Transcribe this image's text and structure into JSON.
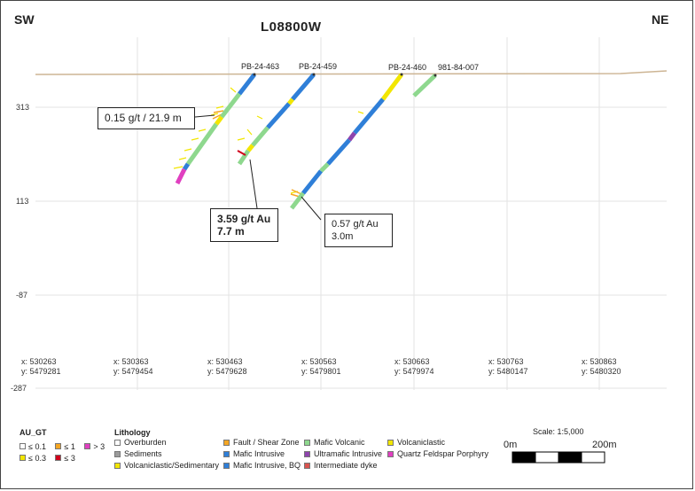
{
  "section": {
    "title": "L08800W",
    "left_direction": "SW",
    "right_direction": "NE"
  },
  "elevations": [
    "313",
    "113",
    "-87",
    "-287"
  ],
  "coordinates": [
    {
      "x": "x: 530263",
      "y": "y: 5479281"
    },
    {
      "x": "x: 530363",
      "y": "y: 5479454"
    },
    {
      "x": "x: 530463",
      "y": "y: 5479628"
    },
    {
      "x": "x: 530563",
      "y": "y: 5479801"
    },
    {
      "x": "x: 530663",
      "y": "y: 5479974"
    },
    {
      "x": "x: 530763",
      "y": "y: 5480147"
    },
    {
      "x": "x: 530863",
      "y": "y: 5480320"
    }
  ],
  "drill_holes": [
    "PB-24-463",
    "PB-24-459",
    "PB-24-460",
    "981-84-007"
  ],
  "callouts": [
    {
      "line1": "0.15 g/t / 21.9 m"
    },
    {
      "line1": "3.59 g/t Au",
      "line2": "7.7 m"
    },
    {
      "line1": "0.57 g/t Au",
      "line2": "3.0m"
    }
  ],
  "legend": {
    "au_title": "AU_GT",
    "au_items": [
      {
        "label": "≤ 0.1",
        "color": "#ffffff"
      },
      {
        "label": "≤ 1",
        "color": "#f5a623"
      },
      {
        "label": "> 3",
        "color": "#e040c0"
      },
      {
        "label": "≤ 0.3",
        "color": "#f2e600"
      },
      {
        "label": "≤ 3",
        "color": "#d0021b"
      }
    ],
    "lith_title": "Lithology",
    "lith_items": [
      {
        "label": "Overburden",
        "color": "#ffffff"
      },
      {
        "label": "Sediments",
        "color": "#9b9b9b"
      },
      {
        "label": "Volcaniclastic/Sedimentary",
        "color": "#f2e600"
      },
      {
        "label": "Fault / Shear Zone",
        "color": "#f5a623"
      },
      {
        "label": "Mafic Intrusive",
        "color": "#2f7fd8"
      },
      {
        "label": "Mafic Intrusive, BQ",
        "color": "#2f7fd8"
      },
      {
        "label": "Mafic Volcanic",
        "color": "#8ed88e"
      },
      {
        "label": "Ultramafic Intrusive",
        "color": "#8e44ad"
      },
      {
        "label": "Intermediate dyke",
        "color": "#d9534f"
      },
      {
        "label": "Volcaniclastic",
        "color": "#f2e600"
      },
      {
        "label": "Quartz Feldspar Porphyry",
        "color": "#e040c0"
      }
    ]
  },
  "scale": {
    "label": "Scale: 1:5,000",
    "start": "0m",
    "end": "200m"
  },
  "colors": {
    "topography": "#cdb594",
    "mafic_volcanic": "#8ed88e",
    "mafic_intrusive": "#2f7fd8",
    "volcaniclastic": "#f2e600",
    "fault": "#f5a623",
    "qfp": "#e040c0",
    "dyke": "#d9534f"
  }
}
